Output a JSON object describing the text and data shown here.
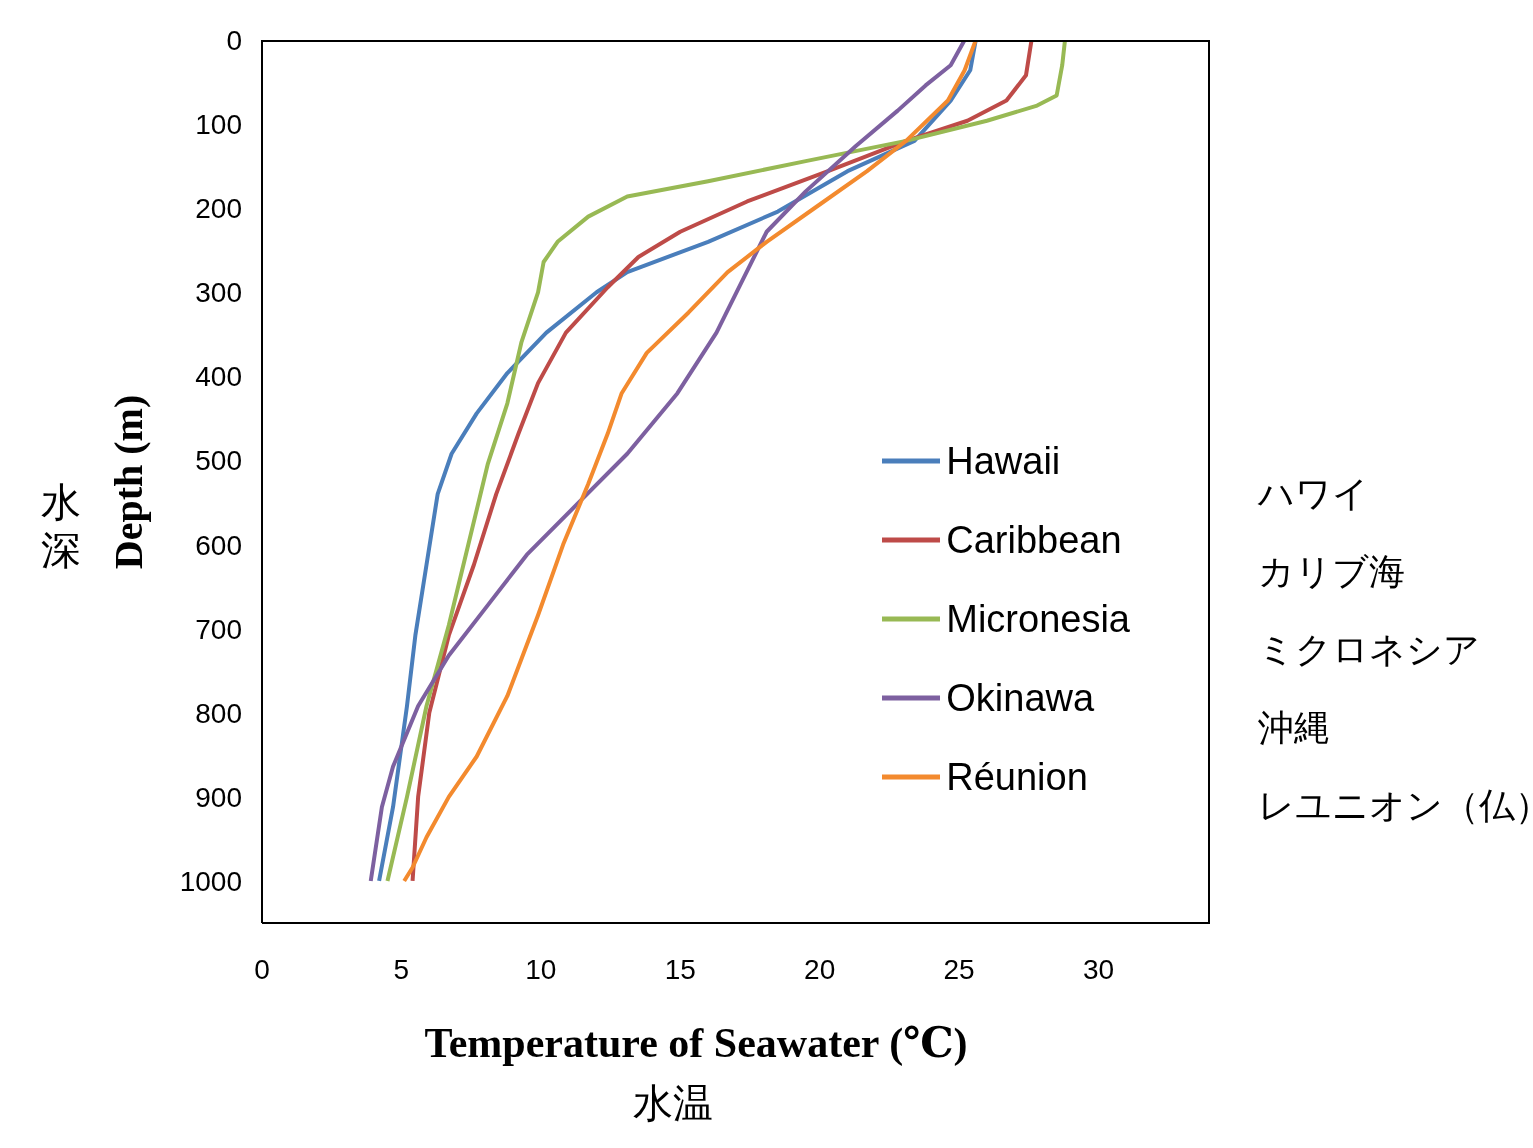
{
  "chart_data": {
    "type": "line",
    "xlabel": "Temperature of Seawater (℃)",
    "ylabel": "Depth (m)",
    "xlim": [
      0,
      34
    ],
    "xticks": [
      0,
      5,
      10,
      15,
      20,
      25,
      30
    ],
    "ylim": [
      1050,
      0
    ],
    "yticks": [
      0,
      100,
      200,
      300,
      400,
      500,
      600,
      700,
      800,
      900,
      1000
    ],
    "grid": false,
    "legend": "right",
    "marker": "none",
    "line_style": "solid",
    "annotations": [
      "水深",
      "水温",
      "ハワイ",
      "カリブ海",
      "ミクロネシア",
      "沖縄",
      "レユニオン（仏）"
    ],
    "series": [
      {
        "name": "Hawaii",
        "color": "#4a7ebb",
        "x": [
          25.6,
          25.4,
          24.7,
          23.4,
          21.0,
          18.5,
          16.0,
          13.1,
          12.0,
          10.2,
          8.8,
          7.7,
          6.8,
          6.3,
          5.9,
          5.5,
          5.2,
          4.7,
          4.2
        ],
        "values": [
          0,
          36,
          72,
          120,
          156,
          204,
          240,
          276,
          300,
          348,
          396,
          444,
          492,
          540,
          624,
          708,
          792,
          912,
          1000
        ]
      },
      {
        "name": "Caribbean",
        "color": "#be4b48",
        "x": [
          27.6,
          27.4,
          26.7,
          25.3,
          23.1,
          20.3,
          17.4,
          15.0,
          13.5,
          12.4,
          10.9,
          9.9,
          9.2,
          8.4,
          7.6,
          6.7,
          6.0,
          5.6,
          5.4
        ],
        "values": [
          0,
          42,
          72,
          96,
          120,
          156,
          192,
          228,
          258,
          294,
          348,
          408,
          468,
          540,
          624,
          708,
          800,
          900,
          1000
        ]
      },
      {
        "name": "Micronesia",
        "color": "#98b954",
        "x": [
          28.8,
          28.7,
          28.5,
          27.8,
          26.0,
          23.1,
          19.5,
          16.0,
          13.1,
          11.7,
          10.6,
          10.1,
          9.9,
          9.3,
          8.8,
          8.1,
          7.4,
          6.7,
          5.9,
          5.2,
          4.5
        ],
        "values": [
          0,
          30,
          66,
          78,
          96,
          120,
          144,
          168,
          186,
          210,
          240,
          264,
          300,
          360,
          432,
          504,
          600,
          696,
          792,
          900,
          1000
        ]
      },
      {
        "name": "Okinawa",
        "color": "#7d60a0",
        "x": [
          25.2,
          24.7,
          23.8,
          22.8,
          21.3,
          19.5,
          18.1,
          17.2,
          16.3,
          14.9,
          13.1,
          11.3,
          9.5,
          8.1,
          6.7,
          5.6,
          4.7,
          4.3,
          3.9
        ],
        "values": [
          0,
          30,
          54,
          84,
          126,
          180,
          228,
          288,
          348,
          420,
          492,
          552,
          612,
          672,
          732,
          792,
          864,
          912,
          1000
        ]
      },
      {
        "name": "Réunion",
        "color": "#f38a2e",
        "x": [
          25.6,
          25.2,
          24.6,
          23.1,
          21.7,
          19.9,
          18.1,
          16.7,
          15.3,
          13.8,
          12.9,
          12.4,
          11.7,
          10.8,
          9.9,
          8.8,
          7.7,
          6.7,
          5.9,
          5.4,
          5.1
        ],
        "values": [
          0,
          36,
          72,
          120,
          156,
          198,
          240,
          276,
          324,
          372,
          420,
          468,
          528,
          600,
          684,
          780,
          852,
          900,
          948,
          984,
          1000
        ]
      }
    ]
  }
}
